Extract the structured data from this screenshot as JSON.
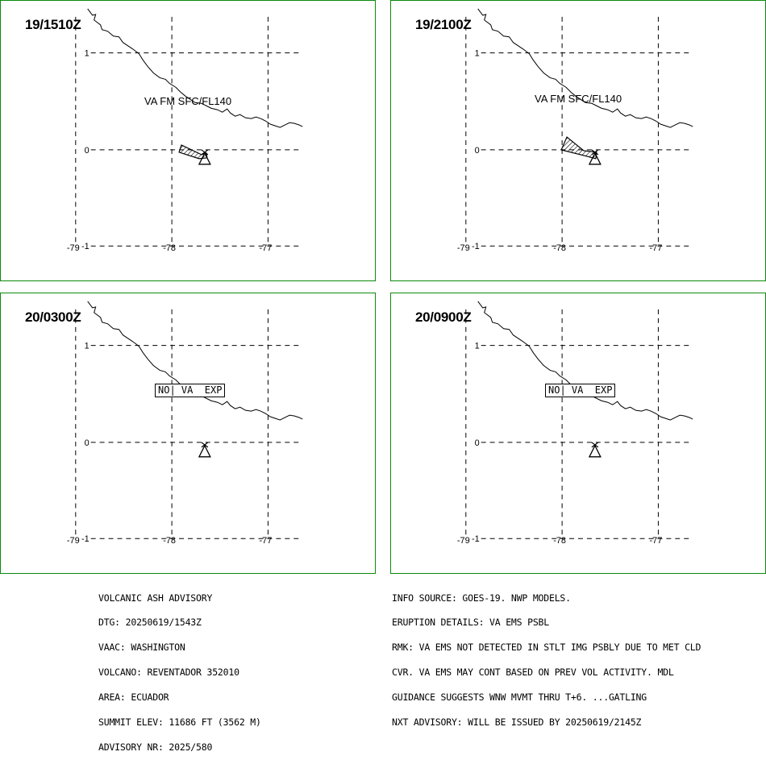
{
  "panels": [
    {
      "title": "19/1510Z",
      "flag": "VA FM SFC/FL140",
      "no_va": "",
      "ash": "p1"
    },
    {
      "title": "19/2100Z",
      "flag": "VA FM SFC/FL140",
      "no_va": "",
      "ash": "p2"
    },
    {
      "title": "20/0300Z",
      "flag": "",
      "no_va": "NO| VA  EXP",
      "ash": ""
    },
    {
      "title": "20/0900Z",
      "flag": "",
      "no_va": "NO| VA  EXP",
      "ash": ""
    }
  ],
  "axes": {
    "x_ticks": [
      "-79",
      "-78",
      "-77"
    ],
    "y_ticks": [
      "1",
      "0",
      "-1"
    ]
  },
  "advisory_left": [
    "VOLCANIC ASH ADVISORY",
    "DTG: 20250619/1543Z",
    "VAAC: WASHINGTON",
    "VOLCANO: REVENTADOR 352010",
    "AREA: ECUADOR",
    "SUMMIT ELEV: 11686 FT (3562 M)",
    "ADVISORY NR: 2025/580"
  ],
  "advisory_right": [
    "INFO SOURCE: GOES-19. NWP MODELS.",
    "ERUPTION DETAILS: VA EMS PSBL",
    "RMK: VA EMS NOT DETECTED IN STLT IMG PSBLY DUE TO MET CLD",
    "CVR. VA EMS MAY CONT BASED ON PREV VOL ACTIVITY. MDL",
    "GUIDANCE SUGGESTS WNW MVMT THRU T+6. ...GATLING",
    "NXT ADVISORY: WILL BE ISSUED BY 20250619/2145Z"
  ],
  "colors": {
    "frame": "#0a8a0a",
    "ink": "#000000"
  },
  "icons": {
    "volcano": "volcano-triangle-icon",
    "ash": "ash-polygon"
  }
}
